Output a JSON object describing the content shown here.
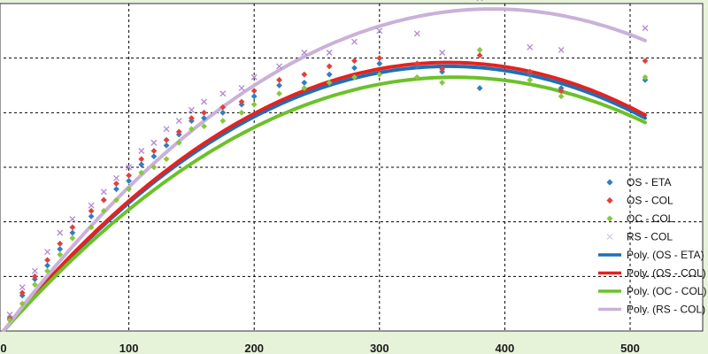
{
  "colors": {
    "page_background": "#e6f3d9",
    "plot_background": "#ffffff",
    "grid": "#000000",
    "axis_strip": "#e6f3d9"
  },
  "chart_data": {
    "type": "scatter",
    "title": "",
    "xlabel": "",
    "ylabel": "",
    "xlim": [
      0,
      520
    ],
    "ylim": [
      0,
      6
    ],
    "x_ticks": [
      0,
      100,
      200,
      300,
      400,
      500
    ],
    "x_tick_labels": [
      "0",
      "100",
      "200",
      "300",
      "400",
      "500"
    ],
    "y_ticks": [
      1,
      2,
      3,
      4,
      5
    ],
    "grid": true,
    "legend_position": "right",
    "scatter_series": [
      {
        "name": "OS - ETA",
        "color": "#2e7fc1",
        "marker": "diamond",
        "x": [
          5,
          15,
          25,
          35,
          45,
          55,
          70,
          80,
          90,
          100,
          110,
          120,
          130,
          140,
          150,
          160,
          175,
          190,
          200,
          220,
          240,
          260,
          280,
          300,
          330,
          350,
          380,
          420,
          445,
          512
        ],
        "y": [
          0.22,
          0.65,
          0.95,
          1.2,
          1.5,
          1.8,
          2.1,
          2.4,
          2.6,
          2.75,
          3.05,
          3.2,
          3.4,
          3.6,
          3.85,
          3.9,
          4.0,
          4.15,
          4.3,
          4.5,
          4.55,
          4.7,
          4.82,
          4.9,
          4.85,
          4.75,
          4.45,
          4.7,
          4.45,
          4.6
        ]
      },
      {
        "name": "OS - COL",
        "color": "#e0403a",
        "marker": "diamond",
        "x": [
          5,
          15,
          25,
          35,
          45,
          55,
          70,
          80,
          90,
          100,
          110,
          120,
          130,
          140,
          150,
          160,
          175,
          190,
          200,
          220,
          240,
          260,
          280,
          300,
          330,
          350,
          380,
          420,
          445,
          512
        ],
        "y": [
          0.25,
          0.7,
          1.0,
          1.3,
          1.6,
          1.9,
          2.2,
          2.4,
          2.7,
          2.85,
          3.15,
          3.3,
          3.5,
          3.65,
          3.9,
          4.0,
          4.1,
          4.2,
          4.4,
          4.6,
          4.7,
          4.85,
          4.95,
          5.0,
          4.9,
          4.8,
          5.05,
          4.75,
          4.4,
          4.95
        ]
      },
      {
        "name": "OC - COL",
        "color": "#8cc63f",
        "marker": "diamond",
        "x": [
          5,
          15,
          25,
          35,
          45,
          55,
          70,
          80,
          90,
          100,
          110,
          120,
          130,
          140,
          150,
          160,
          175,
          190,
          200,
          220,
          240,
          260,
          280,
          300,
          330,
          350,
          380,
          420,
          445,
          512
        ],
        "y": [
          0.2,
          0.5,
          0.85,
          1.1,
          1.4,
          1.7,
          1.9,
          2.2,
          2.4,
          2.6,
          2.9,
          3.0,
          3.15,
          3.45,
          3.7,
          3.75,
          3.85,
          4.0,
          4.15,
          4.35,
          4.45,
          4.55,
          4.65,
          4.7,
          4.65,
          4.55,
          5.15,
          4.6,
          4.3,
          4.65
        ]
      },
      {
        "name": "RS - COL",
        "color": "#b089cf",
        "marker": "x",
        "x": [
          5,
          15,
          25,
          35,
          45,
          55,
          70,
          80,
          90,
          100,
          110,
          120,
          130,
          140,
          150,
          160,
          175,
          190,
          200,
          220,
          240,
          260,
          280,
          300,
          330,
          350,
          380,
          420,
          445,
          512
        ],
        "y": [
          0.3,
          0.8,
          1.1,
          1.45,
          1.8,
          2.05,
          2.3,
          2.55,
          2.8,
          3.0,
          3.3,
          3.45,
          3.7,
          3.85,
          4.05,
          4.2,
          4.35,
          4.45,
          4.65,
          4.85,
          5.1,
          5.1,
          5.3,
          5.5,
          5.45,
          5.1,
          6.1,
          5.2,
          5.15,
          5.55
        ]
      }
    ],
    "trend_lines": [
      {
        "name": "Poly. (OS - ETA)",
        "color": "#1f6fb5",
        "x_peak": 355,
        "y_peak": 4.85,
        "x_end": 512
      },
      {
        "name": "Poly. (OS - COL)",
        "color": "#e52220",
        "x_peak": 355,
        "y_peak": 4.92,
        "x_end": 512
      },
      {
        "name": "Poly. (OC - COL)",
        "color": "#6cc12a",
        "x_peak": 360,
        "y_peak": 4.65,
        "x_end": 512
      },
      {
        "name": "Poly. (RS - COL)",
        "color": "#c9b1d8",
        "x_peak": 390,
        "y_peak": 5.9,
        "x_end": 512
      }
    ],
    "legend": {
      "entries": [
        {
          "label": "OS - ETA",
          "color": "#2e7fc1",
          "kind": "diamond"
        },
        {
          "label": "OS - COL",
          "color": "#e0403a",
          "kind": "diamond"
        },
        {
          "label": "OC - COL",
          "color": "#8cc63f",
          "kind": "diamond"
        },
        {
          "label": "RS - COL",
          "color": "#d8cce8",
          "kind": "x"
        },
        {
          "label": "Poly. (OS - ETA)",
          "color": "#1f6fb5",
          "kind": "line"
        },
        {
          "label": "Poly. (OS - COL)",
          "color": "#e52220",
          "kind": "line"
        },
        {
          "label": "Poly. (OC - COL)",
          "color": "#6cc12a",
          "kind": "line"
        },
        {
          "label": "Poly. (RS - COL)",
          "color": "#c9b1d8",
          "kind": "line"
        }
      ]
    }
  }
}
